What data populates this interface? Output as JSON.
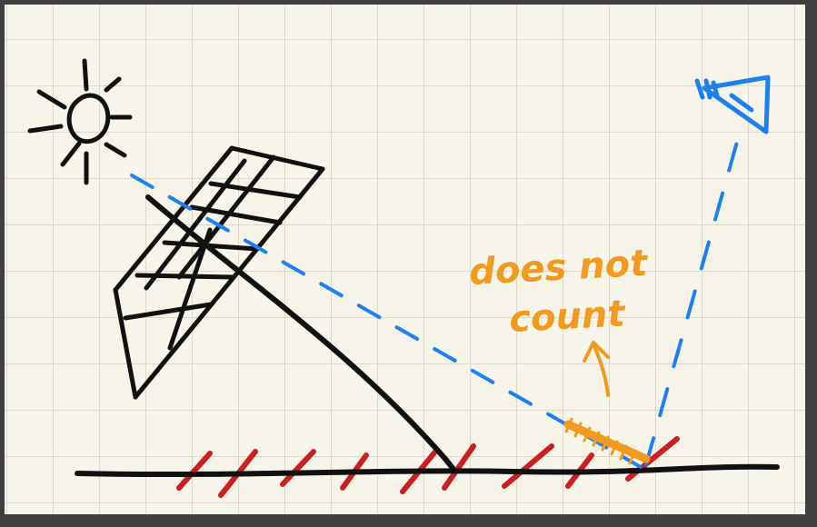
{
  "annotation": {
    "line1": "does not",
    "line2": "count"
  },
  "colors": {
    "paper": "#f7f4e9",
    "grid": "#dcd9cb",
    "ink": "#111111",
    "ray": "#1e7ff0",
    "annotation": "#f29a1d",
    "hatch": "#cc1e1e"
  },
  "icons": [
    "sun-icon",
    "eye-icon",
    "solar-panel-icon"
  ]
}
